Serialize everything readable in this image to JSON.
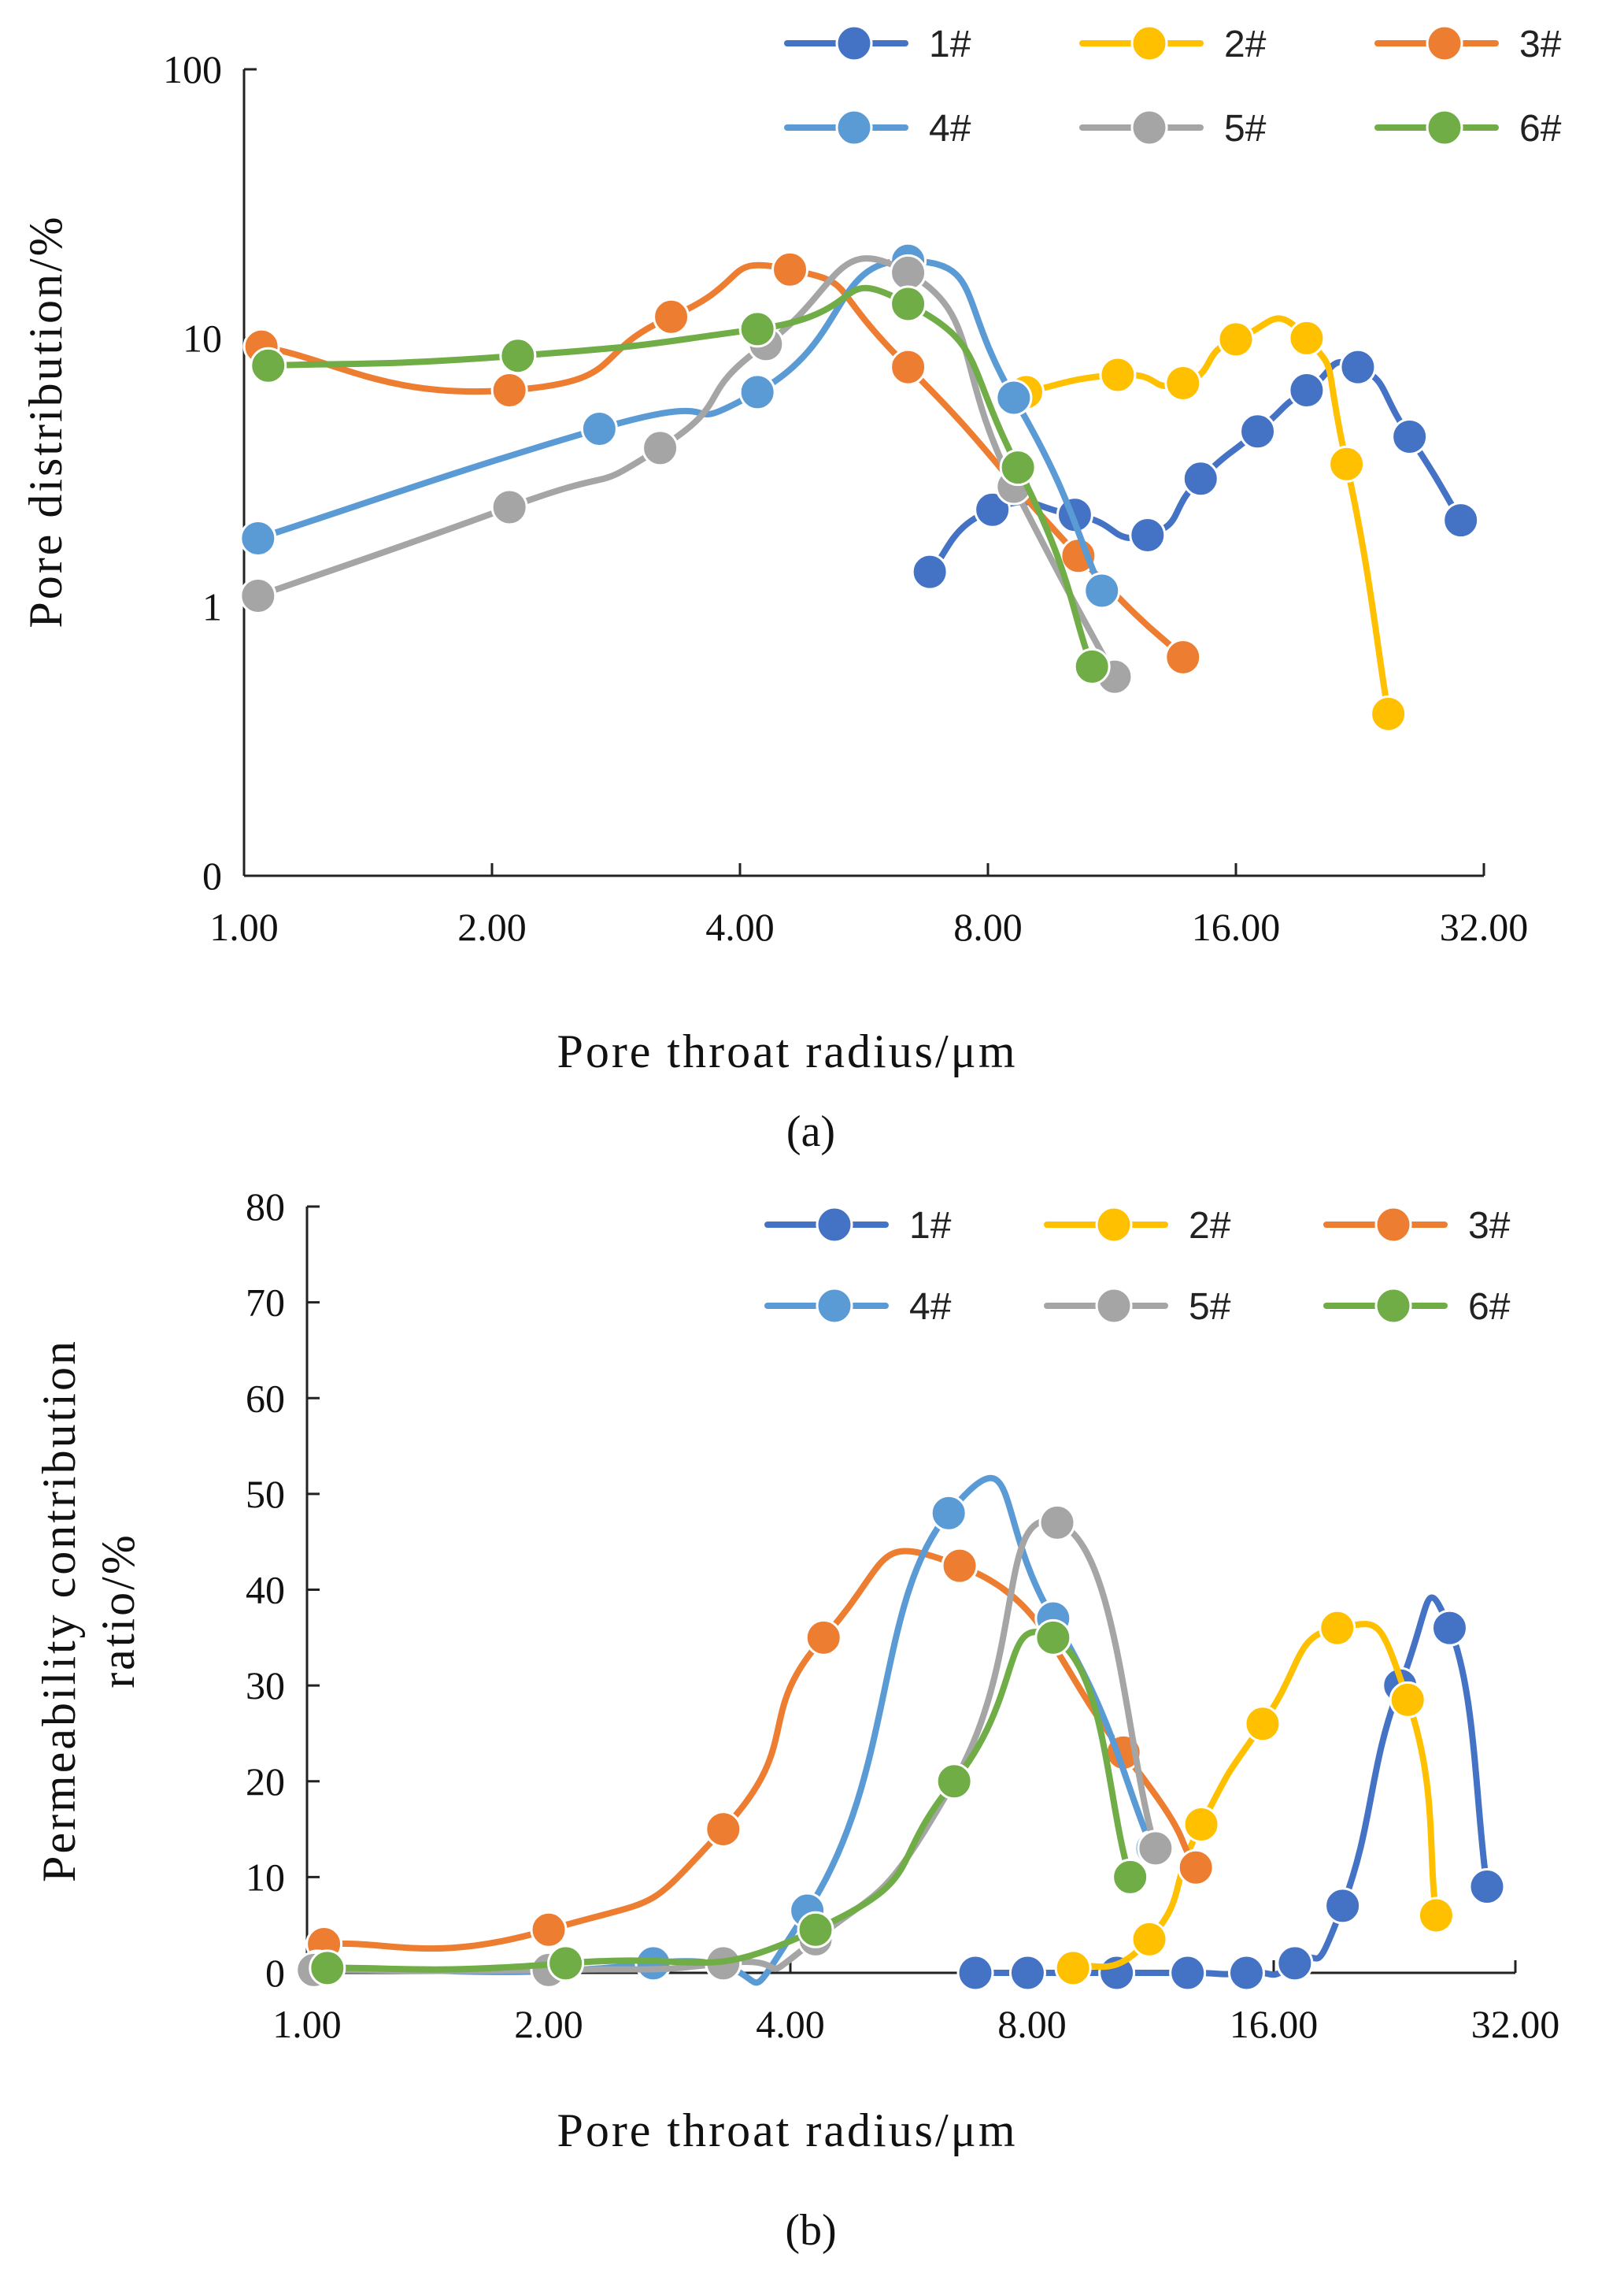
{
  "colors": {
    "1#": "#4472C4",
    "2#": "#FFC000",
    "3#": "#ED7D31",
    "4#": "#5B9BD5",
    "5#": "#A5A5A5",
    "6#": "#70AD47"
  },
  "chart_data": [
    {
      "type": "line",
      "panel_label": "(a)",
      "xlabel": "Pore throat radius/μm",
      "ylabel": "Pore distribution/%",
      "xscale": "log2",
      "yscale": "log10",
      "xlim": [
        1,
        32
      ],
      "ylim_log": [
        0.1,
        100
      ],
      "x_ticks": [
        1,
        2,
        4,
        8,
        16,
        32
      ],
      "x_tick_labels": [
        "1.00",
        "2.00",
        "4.00",
        "8.00",
        "16.00",
        "32.00"
      ],
      "y_ticks": [
        0.1,
        1,
        10,
        100
      ],
      "y_tick_labels": [
        "0",
        "1",
        "10",
        "100"
      ],
      "legend": {
        "position": "top-right",
        "entries": [
          "1#",
          "2#",
          "3#",
          "4#",
          "5#",
          "6#"
        ]
      },
      "series": [
        {
          "name": "1#",
          "x": [
            6.8,
            8.1,
            10.2,
            12.5,
            14.5,
            17.0,
            19.5,
            22.5,
            26.0,
            30.0
          ],
          "y": [
            1.35,
            2.3,
            2.2,
            1.85,
            3.0,
            4.5,
            6.4,
            7.8,
            4.3,
            2.1
          ]
        },
        {
          "name": "2#",
          "x": [
            8.9,
            11.5,
            13.8,
            16.0,
            19.5,
            21.8,
            24.5
          ],
          "y": [
            6.3,
            7.3,
            6.8,
            9.9,
            10.0,
            3.4,
            0.4
          ]
        },
        {
          "name": "3#",
          "x": [
            1.05,
            2.1,
            3.3,
            4.6,
            6.4,
            10.3,
            13.8
          ],
          "y": [
            9.3,
            6.4,
            12.0,
            18.0,
            7.8,
            1.55,
            0.65
          ]
        },
        {
          "name": "4#",
          "x": [
            1.04,
            2.7,
            4.2,
            6.4,
            8.6,
            11.0
          ],
          "y": [
            1.8,
            4.6,
            6.3,
            19.4,
            6.0,
            1.15
          ]
        },
        {
          "name": "5#",
          "x": [
            1.04,
            2.1,
            3.2,
            4.3,
            6.4,
            8.6,
            11.4
          ],
          "y": [
            1.1,
            2.35,
            3.9,
            9.5,
            17.5,
            2.8,
            0.55
          ]
        },
        {
          "name": "6#",
          "x": [
            1.07,
            2.15,
            4.2,
            6.4,
            8.7,
            10.7
          ],
          "y": [
            7.9,
            8.6,
            10.8,
            13.4,
            3.3,
            0.6
          ]
        }
      ]
    },
    {
      "type": "line",
      "panel_label": "(b)",
      "xlabel": "Pore throat radius/μm",
      "ylabel": "Permeability contribution ratio/%",
      "ylabel_lines": [
        "Permeability contribution",
        "ratio/%"
      ],
      "xscale": "log2",
      "yscale": "linear",
      "xlim": [
        1,
        32
      ],
      "ylim": [
        0,
        80
      ],
      "x_ticks": [
        1,
        2,
        4,
        8,
        16,
        32
      ],
      "x_tick_labels": [
        "1.00",
        "2.00",
        "4.00",
        "8.00",
        "16.00",
        "32.00"
      ],
      "y_ticks": [
        0,
        10,
        20,
        30,
        40,
        50,
        60,
        70,
        80
      ],
      "y_tick_labels": [
        "0",
        "10",
        "20",
        "30",
        "40",
        "50",
        "60",
        "70",
        "80"
      ],
      "legend": {
        "position": "top-right",
        "entries": [
          "1#",
          "2#",
          "3#",
          "4#",
          "5#",
          "6#"
        ]
      },
      "series": [
        {
          "name": "1#",
          "x": [
            6.8,
            7.9,
            10.2,
            12.5,
            14.8,
            17.0,
            19.5,
            23.0,
            26.5,
            29.5
          ],
          "y": [
            0,
            0,
            0,
            0,
            0,
            1,
            7,
            30,
            36,
            9
          ]
        },
        {
          "name": "2#",
          "x": [
            9.0,
            11.2,
            13.0,
            15.5,
            19.2,
            23.5,
            25.5
          ],
          "y": [
            0.5,
            3.5,
            15.5,
            26,
            36,
            28.5,
            6
          ]
        },
        {
          "name": "3#",
          "x": [
            1.05,
            2.0,
            3.3,
            4.4,
            6.5,
            10.4,
            12.8
          ],
          "y": [
            3,
            4.5,
            15,
            35,
            42.5,
            23,
            11
          ]
        },
        {
          "name": "4#",
          "x": [
            1.03,
            2.7,
            4.2,
            6.3,
            8.5,
            11.3
          ],
          "y": [
            0.5,
            1,
            6.5,
            48,
            37,
            13
          ]
        },
        {
          "name": "5#",
          "x": [
            1.02,
            2.0,
            3.3,
            4.3,
            6.4,
            8.6,
            11.4
          ],
          "y": [
            0.3,
            0.3,
            1,
            3.5,
            20,
            47,
            13
          ]
        },
        {
          "name": "6#",
          "x": [
            1.06,
            2.1,
            4.3,
            6.4,
            8.5,
            10.6
          ],
          "y": [
            0.5,
            1,
            4.5,
            20,
            35,
            10
          ]
        }
      ]
    }
  ]
}
